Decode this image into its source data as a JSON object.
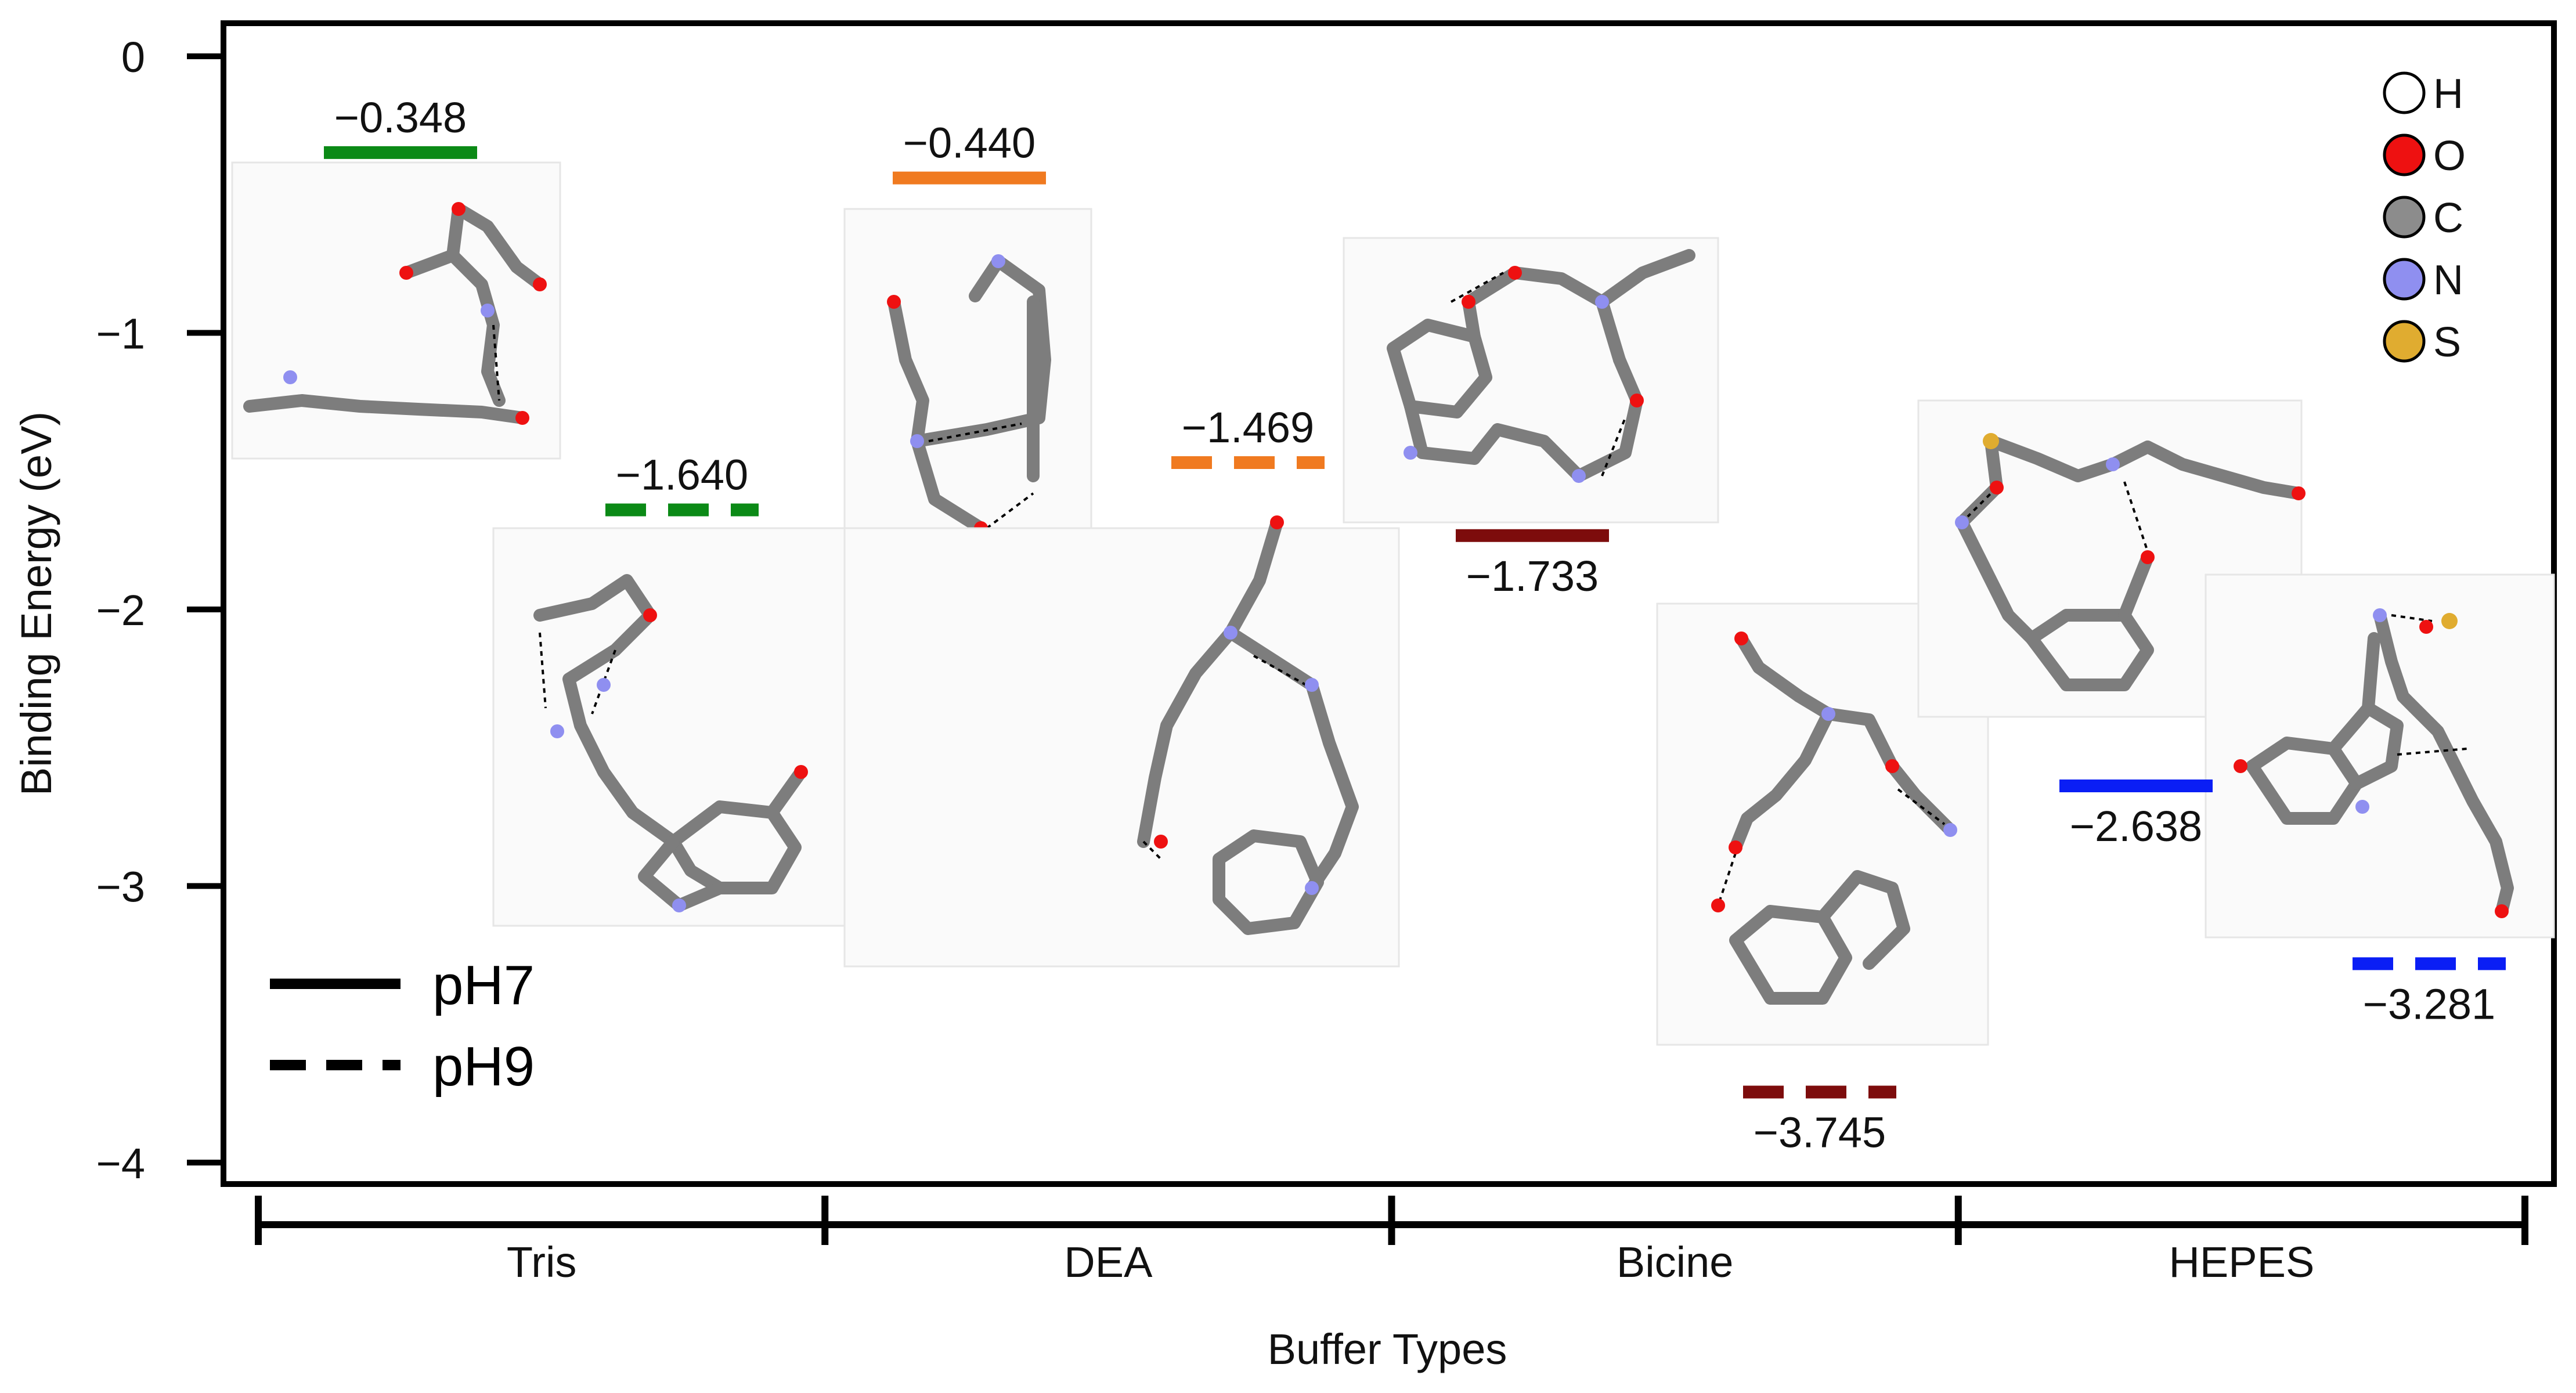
{
  "chart_data": {
    "type": "bar",
    "xlabel": "Buffer Types",
    "ylabel": "Binding Energy (eV)",
    "ylim": [
      -4.2,
      0.1
    ],
    "yticks": [
      0,
      -1,
      -2,
      -3,
      -4
    ],
    "ytick_labels": [
      "0",
      "−1",
      "−2",
      "−3",
      "−4"
    ],
    "categories": [
      "Tris",
      "DEA",
      "Bicine",
      "HEPES"
    ],
    "series": [
      {
        "name": "pH7",
        "linestyle": "solid",
        "values": [
          -0.348,
          -0.44,
          -1.733,
          -2.638
        ]
      },
      {
        "name": "pH9",
        "linestyle": "dashed",
        "values": [
          -1.64,
          -1.469,
          -3.745,
          -3.281
        ]
      }
    ],
    "value_labels": {
      "pH7": [
        "−0.348",
        "−0.440",
        "−1.733",
        "−2.638"
      ],
      "pH9": [
        "−1.640",
        "−1.469",
        "−3.745",
        "−3.281"
      ]
    },
    "label_position": {
      "pH7": [
        "above",
        "above",
        "below",
        "below"
      ],
      "pH9": [
        "above",
        "above",
        "below",
        "below"
      ]
    },
    "category_colors": [
      "#0b8a16",
      "#f07a20",
      "#7d0c0c",
      "#0a1ef5"
    ],
    "legend": {
      "placement": "bottom-left",
      "entries": [
        "pH7",
        "pH9"
      ]
    },
    "atom_legend": {
      "placement": "top-right",
      "items": [
        {
          "label": "H",
          "color": "#ffffff"
        },
        {
          "label": "O",
          "color": "#ee1111"
        },
        {
          "label": "C",
          "color": "#8c8c8c"
        },
        {
          "label": "N",
          "color": "#8f8ff0"
        },
        {
          "label": "S",
          "color": "#e0ac30"
        }
      ]
    },
    "grid": false
  }
}
